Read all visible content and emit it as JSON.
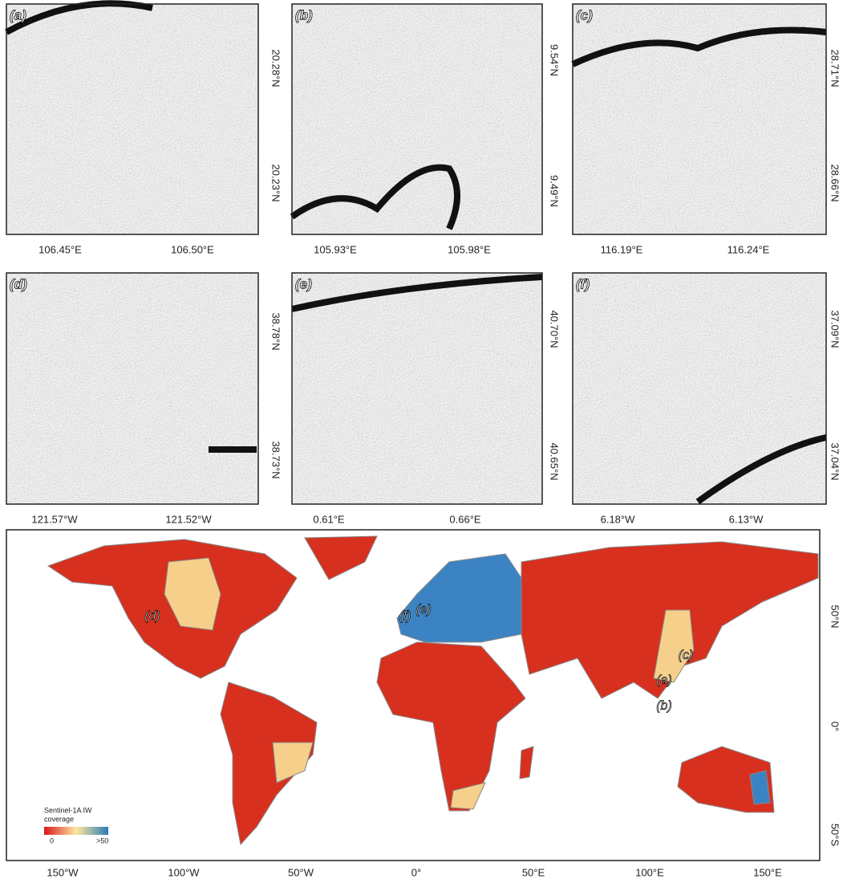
{
  "panels": [
    {
      "label": "(a)",
      "xticks": [
        "106.45°E",
        "106.50°E"
      ],
      "yticks": [
        "20.28°N",
        "20.23°N"
      ]
    },
    {
      "label": "(b)",
      "xticks": [
        "105.93°E",
        "105.98°E"
      ],
      "yticks": [
        "9.54°N",
        "9.49°N"
      ]
    },
    {
      "label": "(c)",
      "xticks": [
        "116.19°E",
        "116.24°E"
      ],
      "yticks": [
        "28.71°N",
        "28.66°N"
      ]
    },
    {
      "label": "(d)",
      "xticks": [
        "121.57°W",
        "121.52°W"
      ],
      "yticks": [
        "38.78°N",
        "38.73°N"
      ]
    },
    {
      "label": "(e)",
      "xticks": [
        "0.61°E",
        "0.66°E"
      ],
      "yticks": [
        "40.70°N",
        "40.65°N"
      ]
    },
    {
      "label": "(f)",
      "xticks": [
        "6.18°W",
        "6.13°W"
      ],
      "yticks": [
        "37.09°N",
        "37.04°N"
      ]
    }
  ],
  "map": {
    "labels": [
      "(d)",
      "(f)",
      "(e)",
      "(c)",
      "(a)",
      "(b)"
    ],
    "xticks": [
      "150°W",
      "100°W",
      "50°W",
      "0°",
      "50°E",
      "100°E",
      "150°E"
    ],
    "yticks": [
      "50°N",
      "0°",
      "50°S"
    ],
    "legend": {
      "title_lines": [
        "Sentinel-1A IW",
        "coverage"
      ],
      "min": "0",
      "max": ">50"
    }
  }
}
